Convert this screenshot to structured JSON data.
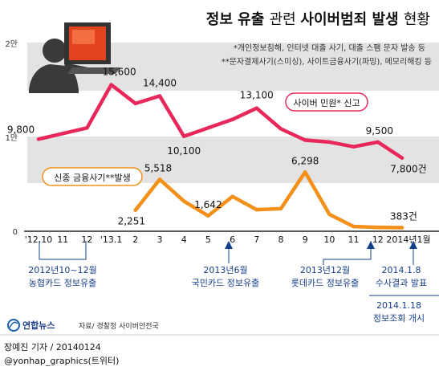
{
  "title": {
    "part1": "정보 유출 ",
    "part2": "관련 ",
    "part3": "사이버범죄 발생 ",
    "part4": "현황"
  },
  "footnotes": [
    "*개인정보침해, 인터넷 대출 사기, 대출 스팸 문자 발송 등",
    "**문자결제사기(스미싱), 사이트금융사기(파밍), 메모리해킹 등"
  ],
  "source": "자료/ 경찰청 사이버안전국",
  "logo_text": "연합뉴스",
  "credit": {
    "line1": "장예진 기자 / 20140124",
    "line2": "@yonhap_graphics(트위터)"
  },
  "colors": {
    "civil": "#e8285a",
    "finance": "#f39019",
    "band": "#e3e3e3",
    "accent_blue": "#163f8a"
  },
  "chart_data": {
    "type": "line",
    "categories": [
      "'12.10",
      "11",
      "12",
      "'13.1",
      "2",
      "3",
      "4",
      "5",
      "6",
      "7",
      "8",
      "9",
      "10",
      "11",
      "12",
      "2014년1월"
    ],
    "y_ticks": [
      {
        "value": 0,
        "label": "0"
      },
      {
        "value": 10000,
        "label": "1만"
      },
      {
        "value": 20000,
        "label": "2만"
      }
    ],
    "ylim": [
      0,
      20000
    ],
    "grid": "shaded bands",
    "series": [
      {
        "key": "civil",
        "name": "사이버 민원* 신고",
        "color": "#e8285a",
        "values": [
          9800,
          10400,
          11000,
          15600,
          13600,
          14400,
          10100,
          11000,
          11900,
          13100,
          10900,
          9700,
          9500,
          9000,
          9500,
          7800
        ],
        "labels": [
          {
            "i": 0,
            "text": "9,800"
          },
          {
            "i": 3,
            "text": "15,600"
          },
          {
            "i": 5,
            "text": "14,400"
          },
          {
            "i": 6,
            "text": "10,100"
          },
          {
            "i": 9,
            "text": "13,100"
          },
          {
            "i": 14,
            "text": "9,500"
          },
          {
            "i": 15,
            "text": "7,800건"
          }
        ]
      },
      {
        "key": "finance",
        "name": "신종 금융사기**발생",
        "color": "#f39019",
        "values": [
          null,
          null,
          null,
          null,
          2251,
          5518,
          3200,
          1642,
          3700,
          2300,
          2400,
          6298,
          1800,
          500,
          420,
          383
        ],
        "labels": [
          {
            "i": 4,
            "text": "2,251"
          },
          {
            "i": 5,
            "text": "5,518"
          },
          {
            "i": 7,
            "text": "1,642"
          },
          {
            "i": 11,
            "text": "6,298"
          },
          {
            "i": 15,
            "text": "383건"
          }
        ]
      }
    ],
    "annotations": [
      {
        "line1": "2012년10~12월",
        "line2": "농협카드 정보유출"
      },
      {
        "line1": "2013년6월",
        "line2": "국민카드 정보유출"
      },
      {
        "line1": "2013년12월",
        "line2": "롯데카드 정보유출"
      },
      {
        "line1": "2014.1.8",
        "line2": "수사결과 발표"
      },
      {
        "line1": "2014.1.18",
        "line2": "정보조회 개시"
      }
    ]
  }
}
